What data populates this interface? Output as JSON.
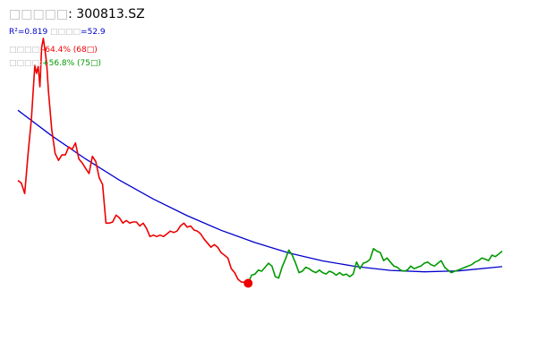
{
  "header": {
    "title_prefix": "□□□□□",
    "title_code": ": 300813.SZ",
    "r2_label": "R²=0.819",
    "metric_prefix": " □□□□",
    "metric_value": "=52.9",
    "red_prefix": "□□□□:",
    "red_value": "-64.4% (68□)",
    "green_prefix": "□□□□:",
    "green_value": "+56.8% (75□)"
  },
  "colors": {
    "decline": "#ee0000",
    "recovery": "#009900",
    "fit": "#0000cc",
    "marker": "#ee0000"
  },
  "chart_data": {
    "type": "line",
    "title": "",
    "xlim": [
      0,
      148
    ],
    "ylim": [
      0,
      100
    ],
    "legend": "none",
    "grid": false,
    "series": [
      {
        "role": "decline",
        "x": [
          0,
          1,
          2,
          3,
          4,
          5,
          5.5,
          6,
          6.5,
          7,
          7.5,
          8,
          8.5,
          9,
          10,
          11,
          12,
          13,
          14,
          15,
          16,
          17,
          18,
          19,
          20,
          21,
          22,
          23,
          24,
          25,
          26,
          27,
          28,
          29,
          30,
          31,
          32,
          33,
          34,
          35,
          36,
          37,
          38,
          39,
          40,
          41,
          42,
          43,
          44,
          45,
          46,
          47,
          48,
          49,
          50,
          51,
          52,
          53,
          54,
          55,
          56,
          57,
          58,
          59,
          60,
          61,
          62,
          63,
          64,
          65,
          66,
          67,
          68
        ],
        "values": [
          49.5,
          48.6,
          44.9,
          58.9,
          71.0,
          89.7,
          86.9,
          89.3,
          82.2,
          95.8,
          99.1,
          94.9,
          90.2,
          80.8,
          67.3,
          58.9,
          56.5,
          58.4,
          58.4,
          61.2,
          60.3,
          62.6,
          57.0,
          55.6,
          53.7,
          51.9,
          57.9,
          56.1,
          50.5,
          48.1,
          34.6,
          34.6,
          35.0,
          37.4,
          36.4,
          34.6,
          35.5,
          34.6,
          35.0,
          35.0,
          33.6,
          34.6,
          32.7,
          29.9,
          30.4,
          29.9,
          30.4,
          29.9,
          30.8,
          31.8,
          31.3,
          31.8,
          33.6,
          34.6,
          33.2,
          33.6,
          32.2,
          31.8,
          30.8,
          29.0,
          27.6,
          26.2,
          27.1,
          26.2,
          24.3,
          23.4,
          22.4,
          18.7,
          17.3,
          15.0,
          14.0,
          14.0,
          13.6
        ]
      },
      {
        "role": "recovery",
        "x": [
          68,
          69,
          70,
          71,
          72,
          73,
          74,
          75,
          76,
          77,
          78,
          79,
          80,
          81,
          82,
          83,
          84,
          85,
          86,
          87,
          88,
          89,
          90,
          91,
          92,
          93,
          94,
          95,
          96,
          97,
          98,
          99,
          100,
          101,
          102,
          103,
          104,
          105,
          106,
          107,
          108,
          109,
          110,
          111,
          112,
          113,
          114,
          115,
          116,
          117,
          118,
          119,
          120,
          121,
          122,
          123,
          124,
          125,
          126,
          127,
          128,
          129,
          130,
          131,
          132,
          133,
          134,
          135,
          136,
          137,
          138,
          139,
          140,
          141,
          142,
          143
        ],
        "values": [
          13.6,
          16.4,
          16.8,
          18.2,
          17.8,
          19.2,
          20.6,
          19.6,
          15.9,
          15.4,
          19.2,
          22.0,
          25.2,
          23.4,
          20.6,
          17.3,
          17.8,
          19.2,
          18.7,
          17.8,
          17.3,
          18.2,
          17.3,
          16.8,
          17.8,
          17.3,
          16.4,
          17.3,
          16.4,
          16.8,
          15.9,
          16.8,
          21.0,
          18.7,
          20.6,
          21.0,
          22.0,
          25.7,
          24.8,
          24.3,
          21.5,
          22.4,
          21.0,
          19.6,
          19.2,
          18.2,
          17.8,
          18.2,
          19.6,
          18.7,
          19.2,
          19.6,
          20.6,
          21.0,
          20.1,
          19.6,
          20.6,
          21.5,
          19.2,
          18.2,
          17.3,
          17.8,
          18.2,
          18.7,
          19.2,
          19.6,
          20.1,
          21.0,
          21.5,
          22.4,
          22.0,
          21.5,
          23.4,
          22.9,
          23.8,
          24.8
        ]
      },
      {
        "role": "fit",
        "type": "quadratic_fit",
        "x": [
          0,
          10,
          20,
          30,
          40,
          50,
          60,
          70,
          80,
          90,
          100,
          110,
          120,
          130,
          143
        ],
        "values": [
          74.0,
          65.1,
          57.0,
          49.6,
          43.0,
          37.2,
          32.1,
          27.8,
          24.2,
          21.4,
          19.4,
          18.1,
          17.6,
          17.9,
          19.4
        ]
      }
    ],
    "marker": {
      "x": 68,
      "value": 13.6
    }
  }
}
